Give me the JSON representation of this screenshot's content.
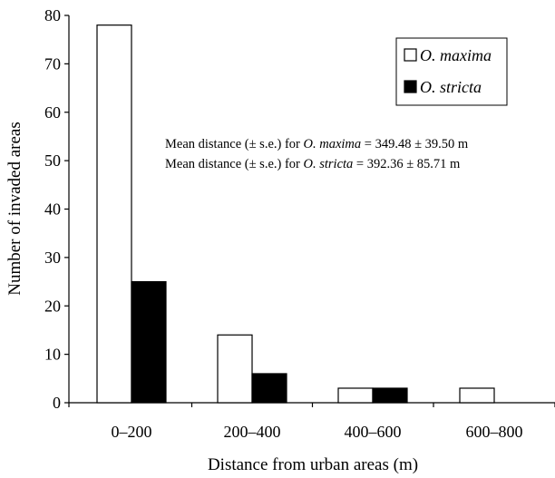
{
  "chart_data": {
    "type": "bar",
    "categories": [
      "0–200",
      "200–400",
      "400–600",
      "600–800"
    ],
    "series": [
      {
        "name": "O. maxima",
        "values": [
          78,
          14,
          3,
          3
        ],
        "color": "#ffffff"
      },
      {
        "name": "O. stricta",
        "values": [
          25,
          6,
          3,
          0
        ],
        "color": "#000000"
      }
    ],
    "xlabel": "Distance from urban areas (m)",
    "ylabel": "Number of invaded areas",
    "ylim": [
      0,
      80
    ],
    "yticks": [
      0,
      10,
      20,
      30,
      40,
      50,
      60,
      70,
      80
    ],
    "grid": false,
    "legend_position": "top-right",
    "annotations": [
      {
        "prefix": "Mean distance (± s.e.) for ",
        "species": "O. maxima",
        "suffix": " = 349.48 ± 39.50 m"
      },
      {
        "prefix": "Mean distance (± s.e.) for ",
        "species": "O. stricta",
        "suffix": " = 392.36 ± 85.71 m"
      }
    ]
  }
}
